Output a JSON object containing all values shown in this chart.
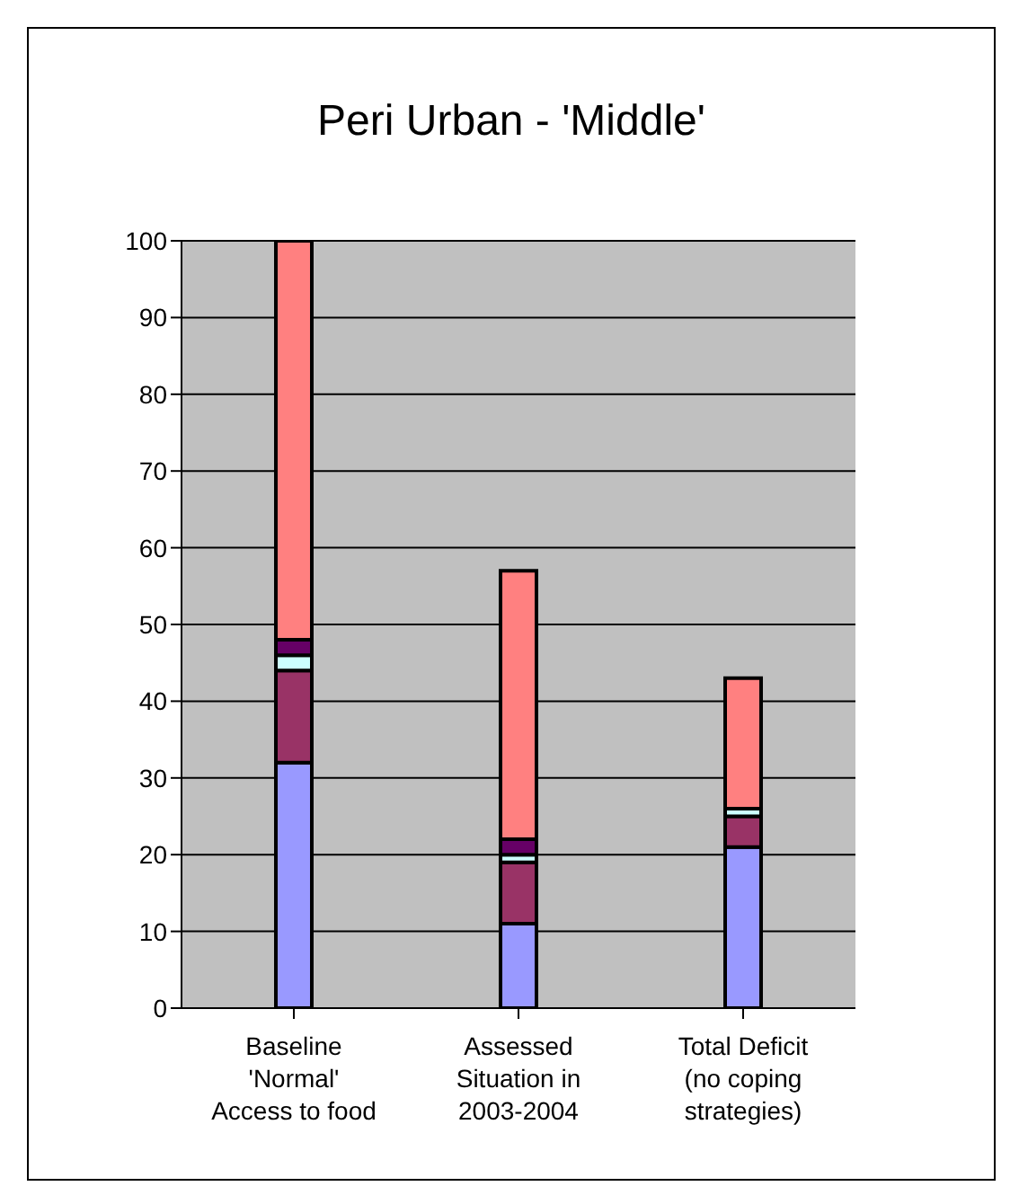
{
  "chart_data": {
    "type": "bar",
    "title": "Peri Urban - 'Middle'",
    "categories": [
      "Baseline 'Normal' Access to food",
      "Assessed Situation in 2003-2004",
      "Total Deficit (no coping strategies)"
    ],
    "stacked": true,
    "series": [
      {
        "color": "#9999ff",
        "values": [
          32,
          11,
          21
        ]
      },
      {
        "color": "#993366",
        "values": [
          12,
          8,
          4
        ]
      },
      {
        "color": "#ccffff",
        "values": [
          2,
          1,
          1
        ]
      },
      {
        "color": "#660066",
        "values": [
          2,
          2,
          0
        ]
      },
      {
        "color": "#ff8080",
        "values": [
          52,
          35,
          17
        ]
      }
    ],
    "ylim": [
      0,
      100
    ],
    "yticks": [
      0,
      10,
      20,
      30,
      40,
      50,
      60,
      70,
      80,
      90,
      100
    ],
    "grid": "y",
    "legend": false
  }
}
